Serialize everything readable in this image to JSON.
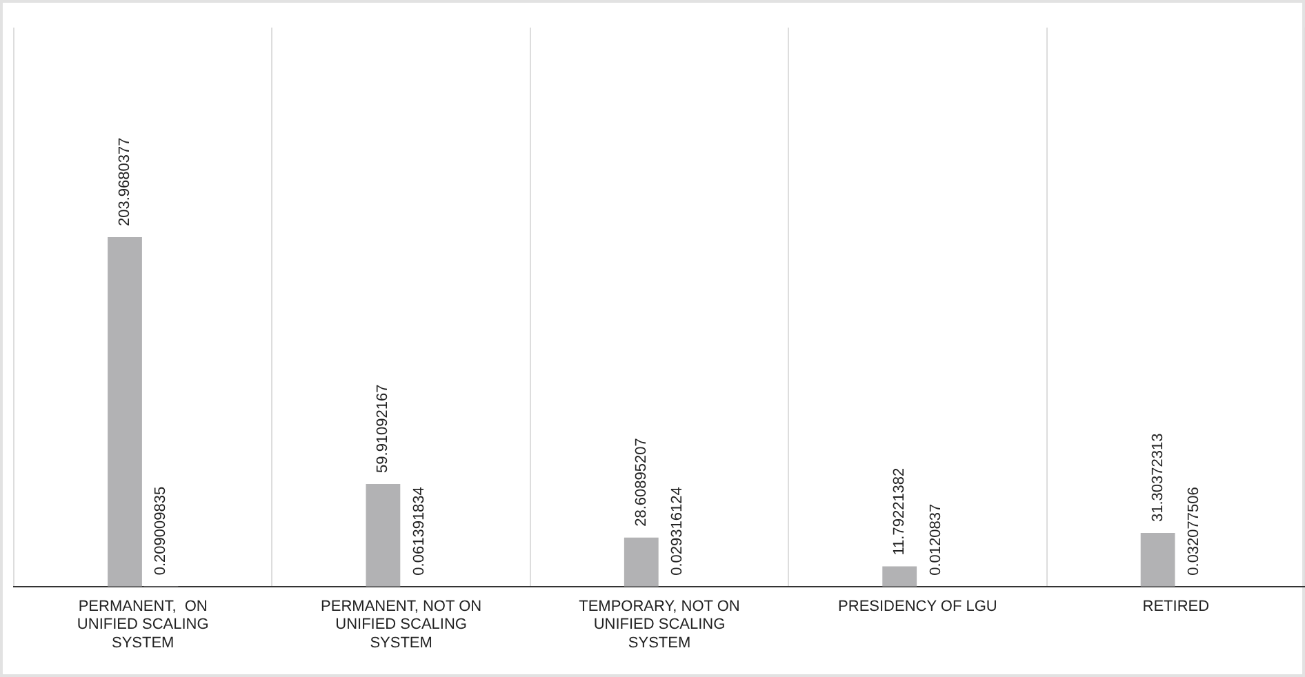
{
  "chart_data": {
    "type": "bar",
    "categories": [
      "PERMANENT,  ON UNIFIED SCALING SYSTEM",
      "PERMANENT, NOT ON UNIFIED SCALING SYSTEM",
      "TEMPORARY, NOT ON UNIFIED SCALING SYSTEM",
      "PRESIDENCY OF LGU",
      "RETIRED"
    ],
    "series": [
      {
        "color": "#b2b2b4",
        "values": [
          203.9680377,
          59.91092167,
          28.60895207,
          11.79221382,
          31.30372313
        ]
      },
      {
        "color": "#b2b2b4",
        "values": [
          0.209009835,
          0.061391834,
          0.029316124,
          0.0120837,
          0.032077506
        ]
      }
    ],
    "data_labels": true,
    "grid": "x",
    "legend": false
  }
}
